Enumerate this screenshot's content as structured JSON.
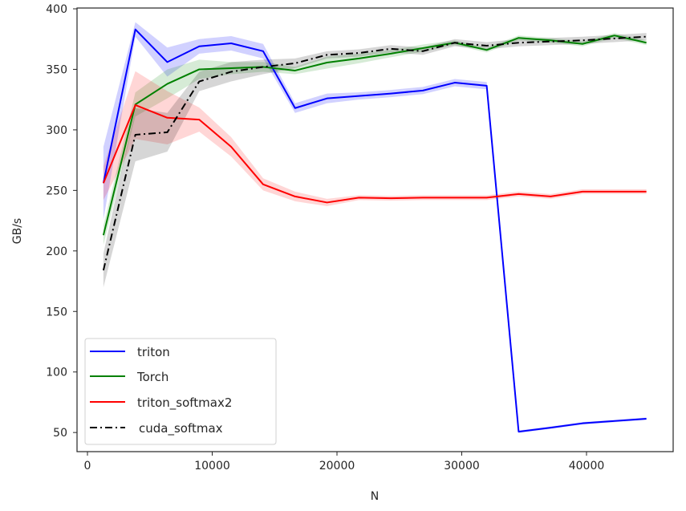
{
  "chart_data": {
    "type": "line",
    "title": "",
    "xlabel": "N",
    "ylabel": "GB/s",
    "xlim": [
      -1000,
      47000
    ],
    "ylim": [
      33,
      403
    ],
    "xticks": [
      0,
      10000,
      20000,
      30000,
      40000
    ],
    "yticks": [
      50,
      100,
      150,
      200,
      250,
      300,
      350,
      400
    ],
    "grid": false,
    "legend_position": "lower left",
    "x": [
      1280,
      3840,
      6400,
      8960,
      11520,
      14080,
      16640,
      19200,
      21760,
      24320,
      26880,
      29440,
      32000,
      34560,
      37120,
      39680,
      42240,
      44800
    ],
    "series": [
      {
        "name": "triton",
        "color": "#0000ff",
        "linestyle": "solid",
        "values": [
          256,
          383,
          356,
          369,
          371.5,
          365,
          318,
          326,
          328,
          330,
          332.5,
          339,
          336.5,
          50.7,
          54,
          57.6,
          59.5,
          61.4
        ],
        "band": [
          30,
          6,
          12,
          6,
          6,
          6,
          4,
          4,
          3,
          3,
          3,
          3,
          3,
          1,
          1,
          1,
          1,
          1
        ]
      },
      {
        "name": "Torch",
        "color": "#008000",
        "linestyle": "solid",
        "values": [
          213,
          321,
          338,
          350,
          351,
          352,
          349,
          355.6,
          359,
          363,
          367.5,
          372,
          366,
          376,
          374,
          371,
          378,
          372
        ],
        "band": [
          8,
          10,
          12,
          8,
          5,
          4,
          3,
          5,
          4,
          3,
          3,
          2,
          2,
          2,
          2,
          2,
          2,
          2
        ]
      },
      {
        "name": "triton_softmax2",
        "color": "#ff0000",
        "linestyle": "solid",
        "values": [
          256,
          320.5,
          310,
          308.5,
          286,
          255,
          245,
          240,
          244,
          243.5,
          244,
          244,
          244,
          247,
          245,
          249,
          249,
          249
        ],
        "band": [
          14,
          28,
          22,
          10,
          8,
          5,
          4,
          3,
          2,
          2,
          2,
          2,
          2,
          2,
          2,
          2,
          2,
          2
        ]
      },
      {
        "name": "cuda_softmax",
        "color": "#000000",
        "linestyle": "dashdot",
        "values": [
          184,
          296,
          298,
          340,
          348,
          352,
          355,
          362,
          363.5,
          367,
          365,
          372,
          369.5,
          372,
          373,
          374,
          375.5,
          377
        ],
        "band": [
          14,
          22,
          16,
          8,
          8,
          6,
          4,
          3,
          3,
          3,
          3,
          3,
          3,
          3,
          3,
          3,
          3,
          3
        ]
      }
    ]
  },
  "legend": {
    "entries": [
      "triton",
      "Torch",
      "triton_softmax2",
      "cuda_softmax"
    ]
  },
  "axes": {
    "xlabel": "N",
    "ylabel": "GB/s",
    "xtick_labels": [
      "0",
      "10000",
      "20000",
      "30000",
      "40000"
    ],
    "ytick_labels": [
      "50",
      "100",
      "150",
      "200",
      "250",
      "300",
      "350",
      "400"
    ]
  }
}
